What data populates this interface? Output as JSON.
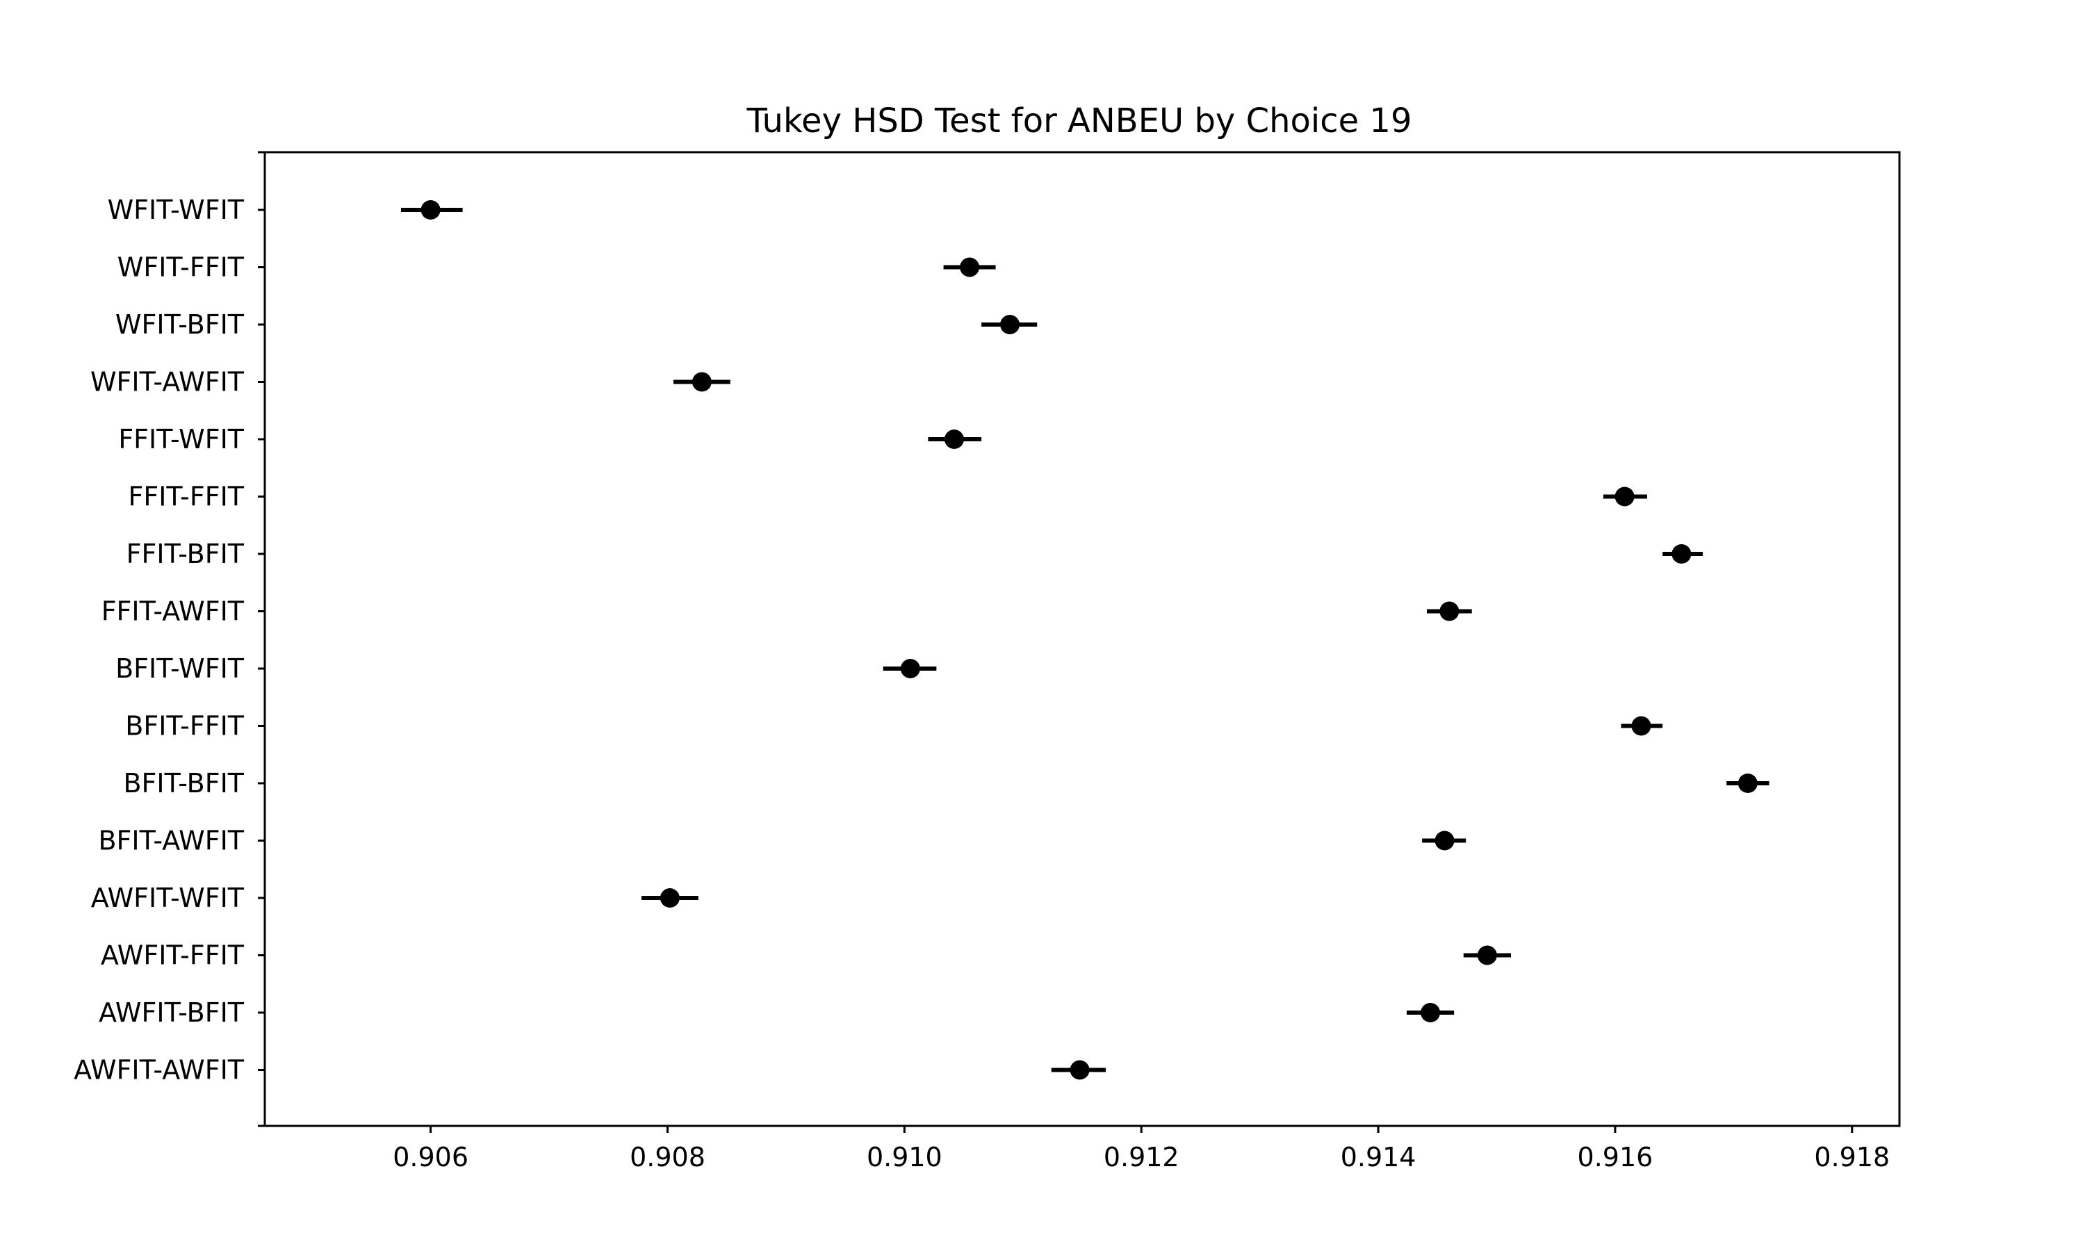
{
  "chart_data": {
    "type": "scatter",
    "title": "Tukey HSD Test for ANBEU by Choice 19",
    "xlabel": "",
    "ylabel": "",
    "xlim": [
      0.9046,
      0.9184
    ],
    "xticks": [
      "0.906",
      "0.908",
      "0.910",
      "0.912",
      "0.914",
      "0.916",
      "0.918"
    ],
    "xtick_values": [
      0.906,
      0.908,
      0.91,
      0.912,
      0.914,
      0.916,
      0.918
    ],
    "grid": false,
    "marker_color": "#000000",
    "categories": [
      "WFIT-WFIT",
      "WFIT-FFIT",
      "WFIT-BFIT",
      "WFIT-AWFIT",
      "FFIT-WFIT",
      "FFIT-FFIT",
      "FFIT-BFIT",
      "FFIT-AWFIT",
      "BFIT-WFIT",
      "BFIT-FFIT",
      "BFIT-BFIT",
      "BFIT-AWFIT",
      "AWFIT-WFIT",
      "AWFIT-FFIT",
      "AWFIT-BFIT",
      "AWFIT-AWFIT"
    ],
    "means": [
      0.906,
      0.91055,
      0.91089,
      0.90829,
      0.91042,
      0.91608,
      0.91656,
      0.9146,
      0.91005,
      0.91622,
      0.91712,
      0.91456,
      0.90802,
      0.91492,
      0.91444,
      0.91148
    ],
    "ci_lower": [
      0.90575,
      0.91033,
      0.91065,
      0.90805,
      0.9102,
      0.9159,
      0.9164,
      0.91441,
      0.90982,
      0.91605,
      0.91694,
      0.91437,
      0.90778,
      0.91472,
      0.91424,
      0.91124
    ],
    "ci_upper": [
      0.90627,
      0.91077,
      0.91112,
      0.90853,
      0.91065,
      0.91627,
      0.91674,
      0.91479,
      0.91027,
      0.9164,
      0.9173,
      0.91474,
      0.90826,
      0.91512,
      0.91464,
      0.9117
    ]
  }
}
